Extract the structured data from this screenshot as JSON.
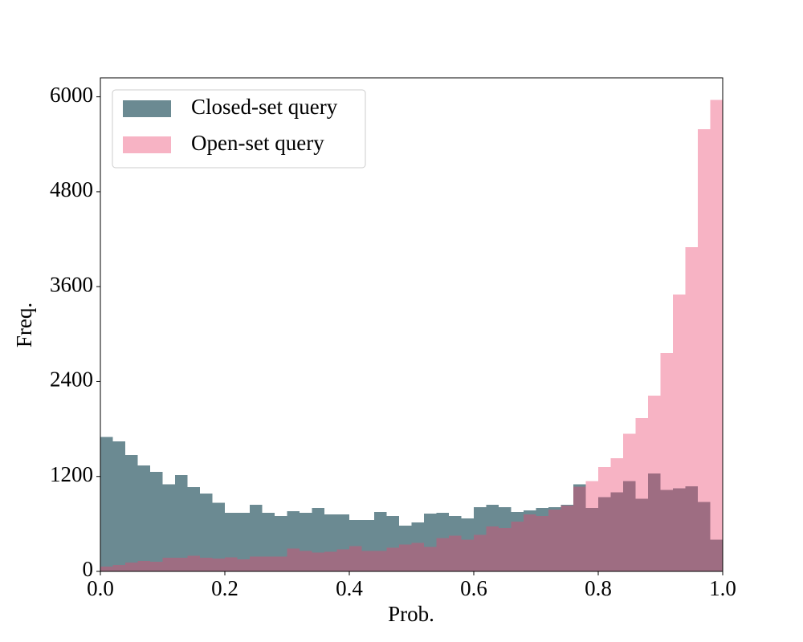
{
  "chart_data": {
    "type": "histogram",
    "xlabel": "Prob.",
    "ylabel": "Freq.",
    "bins": [
      0,
      0.02,
      0.04,
      0.06,
      0.08,
      0.1,
      0.12,
      0.14,
      0.16,
      0.18,
      0.2,
      0.22,
      0.24,
      0.26,
      0.28,
      0.3,
      0.32,
      0.34,
      0.36,
      0.38,
      0.4,
      0.42,
      0.44,
      0.46,
      0.48,
      0.5,
      0.52,
      0.54,
      0.56,
      0.58,
      0.6,
      0.62,
      0.64,
      0.66,
      0.68,
      0.7,
      0.72,
      0.74,
      0.76,
      0.78,
      0.8,
      0.82,
      0.84,
      0.86,
      0.88,
      0.9,
      0.92,
      0.94,
      0.96,
      0.98,
      1
    ],
    "series": [
      {
        "name": "Closed-set query",
        "color": "#6b8a92",
        "opacity": 1,
        "values": [
          1700,
          1645,
          1470,
          1340,
          1260,
          1100,
          1220,
          1065,
          985,
          865,
          740,
          740,
          840,
          740,
          700,
          760,
          740,
          800,
          720,
          720,
          650,
          650,
          750,
          700,
          580,
          620,
          730,
          740,
          700,
          670,
          810,
          840,
          810,
          750,
          770,
          800,
          810,
          840,
          1100,
          800,
          940,
          1000,
          1140,
          920,
          1240,
          1030,
          1050,
          1075,
          880,
          400
        ]
      },
      {
        "name": "Open-set query",
        "color": "#eb416b",
        "opacity": 0.4,
        "values": [
          60,
          80,
          110,
          130,
          120,
          170,
          170,
          200,
          170,
          160,
          180,
          150,
          190,
          190,
          190,
          290,
          260,
          240,
          250,
          280,
          320,
          260,
          260,
          300,
          340,
          360,
          310,
          420,
          450,
          400,
          460,
          570,
          550,
          630,
          720,
          700,
          780,
          830,
          1070,
          1140,
          1320,
          1430,
          1740,
          1940,
          2220,
          2760,
          3500,
          4100,
          5590,
          5960
        ]
      }
    ],
    "xlim": [
      0,
      1
    ],
    "ylim": [
      0,
      6240
    ],
    "xticks": [
      {
        "value": 0,
        "label": "0.0"
      },
      0.2,
      0.4,
      0.6,
      0.8,
      {
        "value": 1,
        "label": "1.0"
      }
    ],
    "yticks": [
      0,
      1200,
      2400,
      3600,
      4800,
      6000
    ],
    "legend": "upper left",
    "grid": false
  }
}
